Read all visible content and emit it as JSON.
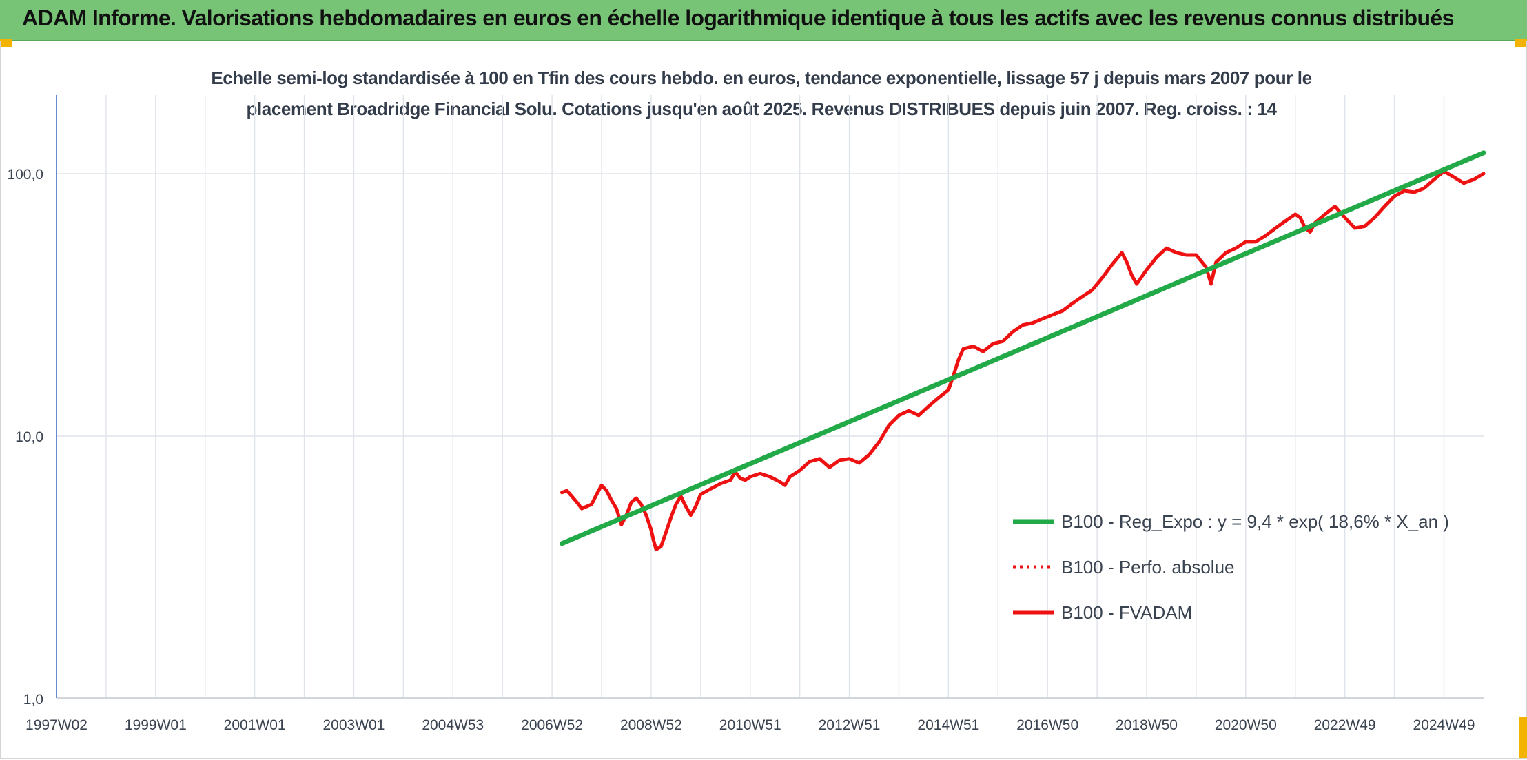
{
  "header": {
    "title": "ADAM Informe. Valorisations hebdomadaires en euros en échelle logarithmique identique à tous les actifs avec les revenus connus distribués"
  },
  "chart_data": {
    "type": "line",
    "title_lines": [
      "Echelle semi-log standardisée à 100 en Tfin des cours hebdo. en euros, tendance exponentielle, lissage 57 j depuis mars 2007 pour le",
      "placement Broadridge Financial Solu. Cotations jusqu'en août 2025. Revenus DISTRIBUES depuis juin 2007. Reg. croiss. : 14"
    ],
    "y_scale": "log",
    "ylim": [
      1,
      200
    ],
    "y_ticks": [
      1,
      10,
      100
    ],
    "y_tick_labels": [
      "1,0",
      "10,0",
      "100,0"
    ],
    "x_range": [
      1997.0,
      2025.8
    ],
    "x_ticks": [
      1997.0,
      1999.0,
      2001.0,
      2003.0,
      2005.0,
      2007.0,
      2009.0,
      2011.0,
      2013.0,
      2015.0,
      2017.0,
      2019.0,
      2021.0,
      2023.0,
      2025.0
    ],
    "x_tick_labels": [
      "1997W02",
      "1999W01",
      "2001W01",
      "2003W01",
      "2004W53",
      "2006W52",
      "2008W52",
      "2010W51",
      "2012W51",
      "2014W51",
      "2016W50",
      "2018W50",
      "2020W50",
      "2022W49",
      "2024W49"
    ],
    "x_vgrid": [
      1997.0,
      1998.0,
      1999.0,
      2000.0,
      2001.0,
      2002.0,
      2003.0,
      2004.0,
      2005.0,
      2006.0,
      2007.0,
      2008.0,
      2009.0,
      2010.0,
      2011.0,
      2012.0,
      2013.0,
      2014.0,
      2015.0,
      2016.0,
      2017.0,
      2018.0,
      2019.0,
      2020.0,
      2021.0,
      2022.0,
      2023.0,
      2024.0,
      2025.0
    ],
    "grid": true,
    "legend_position": "right",
    "series": [
      {
        "name": "B100 - Reg_Expo : y = 9,4 * exp( 18,6% *  X_an )",
        "color": "#22aa48",
        "style": "solid",
        "x": [
          2007.2,
          2025.8
        ],
        "y": [
          3.9,
          120
        ]
      },
      {
        "name": "B100 - Perfo. absolue",
        "color": "#ee1111",
        "style": "dotted",
        "x": [],
        "y": []
      },
      {
        "name": "B100 - FVADAM",
        "color": "#ee1111",
        "style": "solid",
        "x": [
          2007.2,
          2007.3,
          2007.4,
          2007.5,
          2007.6,
          2007.8,
          2007.9,
          2008.0,
          2008.1,
          2008.2,
          2008.3,
          2008.4,
          2008.5,
          2008.6,
          2008.7,
          2008.8,
          2008.9,
          2009.0,
          2009.05,
          2009.1,
          2009.2,
          2009.3,
          2009.4,
          2009.5,
          2009.6,
          2009.7,
          2009.8,
          2009.9,
          2010.0,
          2010.2,
          2010.4,
          2010.6,
          2010.7,
          2010.8,
          2010.9,
          2011.0,
          2011.2,
          2011.4,
          2011.6,
          2011.7,
          2011.8,
          2012.0,
          2012.2,
          2012.4,
          2012.6,
          2012.8,
          2013.0,
          2013.2,
          2013.4,
          2013.6,
          2013.8,
          2014.0,
          2014.2,
          2014.4,
          2014.6,
          2014.8,
          2015.0,
          2015.1,
          2015.2,
          2015.3,
          2015.5,
          2015.7,
          2015.9,
          2016.1,
          2016.3,
          2016.5,
          2016.7,
          2016.9,
          2017.1,
          2017.3,
          2017.5,
          2017.7,
          2017.9,
          2018.1,
          2018.3,
          2018.5,
          2018.6,
          2018.7,
          2018.8,
          2019.0,
          2019.2,
          2019.4,
          2019.6,
          2019.8,
          2020.0,
          2020.2,
          2020.3,
          2020.4,
          2020.6,
          2020.8,
          2021.0,
          2021.2,
          2021.4,
          2021.6,
          2021.8,
          2022.0,
          2022.1,
          2022.2,
          2022.3,
          2022.4,
          2022.6,
          2022.8,
          2023.0,
          2023.2,
          2023.4,
          2023.6,
          2023.8,
          2024.0,
          2024.2,
          2024.4,
          2024.6,
          2024.8,
          2025.0,
          2025.2,
          2025.4,
          2025.6,
          2025.8
        ],
        "y": [
          6.1,
          6.2,
          5.9,
          5.6,
          5.3,
          5.5,
          6.0,
          6.5,
          6.2,
          5.7,
          5.3,
          4.6,
          5.0,
          5.6,
          5.8,
          5.5,
          5.0,
          4.4,
          4.0,
          3.7,
          3.8,
          4.3,
          4.9,
          5.5,
          5.9,
          5.4,
          5.0,
          5.4,
          6.0,
          6.3,
          6.6,
          6.8,
          7.3,
          6.9,
          6.8,
          7.0,
          7.2,
          7.0,
          6.7,
          6.5,
          7.0,
          7.4,
          8.0,
          8.2,
          7.6,
          8.1,
          8.2,
          7.9,
          8.5,
          9.5,
          11.0,
          12.0,
          12.5,
          12.0,
          13.0,
          14.0,
          15.0,
          17.0,
          19.5,
          21.5,
          22.0,
          21.0,
          22.5,
          23.0,
          25.0,
          26.5,
          27.0,
          28.0,
          29.0,
          30.0,
          32.0,
          34.0,
          36.0,
          40.0,
          45.0,
          50.0,
          46.0,
          41.0,
          38.0,
          43.0,
          48.0,
          52.0,
          50.0,
          49.0,
          49.0,
          44.0,
          38.0,
          46.0,
          50.0,
          52.0,
          55.0,
          55.0,
          58.0,
          62.0,
          66.0,
          70.0,
          68.0,
          62.0,
          60.0,
          65.0,
          70.0,
          75.0,
          68.0,
          62.0,
          63.0,
          68.0,
          75.0,
          82.0,
          86.0,
          85.0,
          88.0,
          95.0,
          102.0,
          97.0,
          92.0,
          95.0,
          100.0
        ]
      }
    ]
  }
}
